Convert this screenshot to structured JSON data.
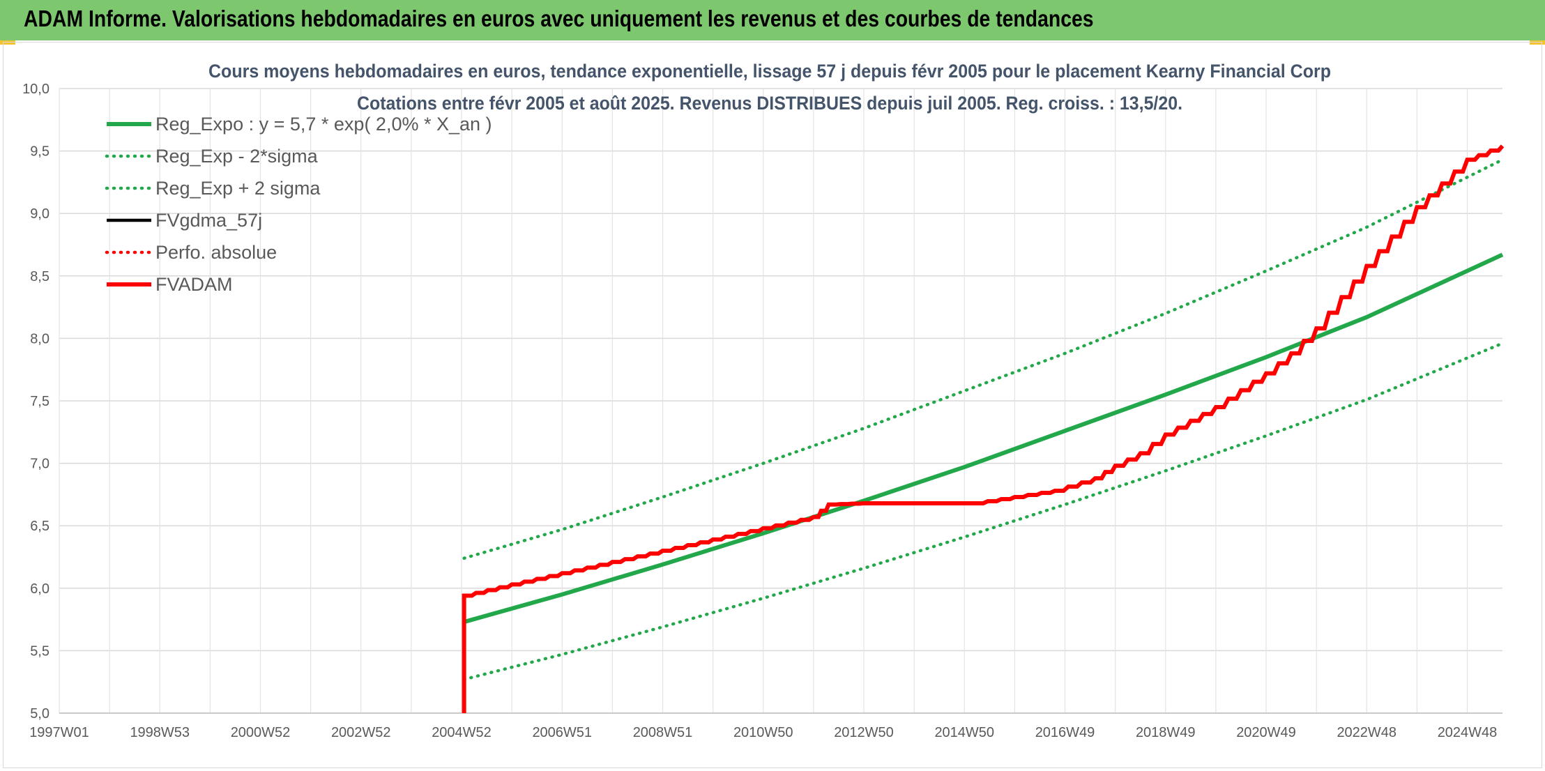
{
  "header": {
    "title": "ADAM Informe. Valorisations hebdomadaires en euros avec uniquement les revenus et des courbes de tendances"
  },
  "chart_data": {
    "type": "line",
    "title": "Cours moyens hebdomadaires en euros, tendance exponentielle, lissage 57 j depuis févr 2005 pour le placement Kearny Financial Corp",
    "subtitle": "Cotations entre févr 2005 et août 2025. Revenus DISTRIBUES depuis juil 2005. Reg. croiss. : 13,5/20.",
    "xlabel": "",
    "ylabel": "",
    "x_tick_labels": [
      "1997W01",
      "1998W53",
      "2000W52",
      "2002W52",
      "2004W52",
      "2006W51",
      "2008W51",
      "2010W50",
      "2012W50",
      "2014W50",
      "2016W49",
      "2018W49",
      "2020W49",
      "2022W48",
      "2024W48"
    ],
    "y_tick_labels": [
      "5,0",
      "5,5",
      "6,0",
      "6,5",
      "7,0",
      "7,5",
      "8,0",
      "8,5",
      "9,0",
      "9,5",
      "10,0"
    ],
    "xlim": [
      1997.0,
      2025.7
    ],
    "ylim": [
      5.0,
      10.0
    ],
    "y_ticks": [
      5.0,
      5.5,
      6.0,
      6.5,
      7.0,
      7.5,
      8.0,
      8.5,
      9.0,
      9.5,
      10.0
    ],
    "x_ticks": [
      1997.0,
      1999.0,
      2001.0,
      2003.0,
      2005.0,
      2007.0,
      2009.0,
      2011.0,
      2013.0,
      2015.0,
      2017.0,
      2019.0,
      2021.0,
      2023.0,
      2025.0
    ],
    "grid": true,
    "legend_position": "top-left",
    "series": [
      {
        "name": "Reg_Expo : y = 5,7 * exp( 2,0% *  X_an )",
        "color": "#22a84a",
        "style": "solid",
        "x": [
          2005.05,
          2007,
          2009,
          2011,
          2013,
          2015,
          2017,
          2019,
          2021,
          2023,
          2025.7
        ],
        "y": [
          5.73,
          5.95,
          6.19,
          6.44,
          6.7,
          6.97,
          7.26,
          7.55,
          7.85,
          8.17,
          8.67
        ]
      },
      {
        "name": "Reg_Exp - 2*sigma",
        "color": "#22a84a",
        "style": "dotted",
        "x": [
          2005.05,
          2007,
          2009,
          2011,
          2013,
          2015,
          2017,
          2019,
          2021,
          2023,
          2025.7
        ],
        "y": [
          5.27,
          5.47,
          5.69,
          5.92,
          6.16,
          6.41,
          6.67,
          6.94,
          7.22,
          7.51,
          7.96
        ]
      },
      {
        "name": "Reg_Exp + 2 sigma",
        "color": "#22a84a",
        "style": "dotted",
        "x": [
          2005.05,
          2007,
          2009,
          2011,
          2013,
          2015,
          2017,
          2019,
          2021,
          2023,
          2025.7
        ],
        "y": [
          6.24,
          6.47,
          6.73,
          7.0,
          7.28,
          7.58,
          7.88,
          8.2,
          8.54,
          8.89,
          9.43
        ]
      },
      {
        "name": "FVgdma_57j",
        "color": "#000000",
        "style": "solid",
        "x": [
          2005.05,
          2006,
          2007,
          2008,
          2009,
          2010,
          2011,
          2012,
          2012.3,
          2013,
          2014,
          2015.2,
          2016,
          2016.8,
          2017.6,
          2018.0,
          2018.5,
          2019,
          2020,
          2021,
          2021.5,
          2022,
          2023,
          2024,
          2025,
          2025.7
        ],
        "y": [
          5.94,
          6.03,
          6.12,
          6.21,
          6.3,
          6.39,
          6.48,
          6.57,
          6.67,
          6.68,
          6.68,
          6.68,
          6.73,
          6.78,
          6.88,
          6.98,
          7.08,
          7.23,
          7.45,
          7.72,
          7.88,
          8.08,
          8.58,
          9.05,
          9.43,
          9.54
        ]
      },
      {
        "name": "Perfo. absolue",
        "color": "#ff0000",
        "style": "dotted",
        "x": [
          2005.05,
          2006,
          2007,
          2008,
          2009,
          2010,
          2011,
          2012,
          2012.3,
          2013,
          2014,
          2015.2,
          2016,
          2016.8,
          2017.6,
          2018.0,
          2018.5,
          2019,
          2020,
          2021,
          2021.5,
          2022,
          2023,
          2024,
          2025,
          2025.7
        ],
        "y": [
          5.94,
          6.03,
          6.12,
          6.21,
          6.3,
          6.39,
          6.48,
          6.57,
          6.67,
          6.68,
          6.68,
          6.68,
          6.73,
          6.78,
          6.88,
          6.98,
          7.08,
          7.23,
          7.45,
          7.72,
          7.88,
          8.08,
          8.58,
          9.05,
          9.43,
          9.54
        ]
      },
      {
        "name": "FVADAM",
        "color": "#ff0000",
        "style": "solid",
        "x": [
          2005.05,
          2005.05,
          2006,
          2007,
          2008,
          2009,
          2010,
          2011,
          2012,
          2012.3,
          2013,
          2014,
          2015.2,
          2016,
          2016.8,
          2017.6,
          2018.0,
          2018.5,
          2019,
          2020,
          2021,
          2021.5,
          2022,
          2023,
          2024,
          2025,
          2025.7
        ],
        "y": [
          5.0,
          5.94,
          6.03,
          6.12,
          6.21,
          6.3,
          6.39,
          6.48,
          6.57,
          6.67,
          6.68,
          6.68,
          6.68,
          6.73,
          6.78,
          6.88,
          6.98,
          7.08,
          7.23,
          7.45,
          7.72,
          7.88,
          8.08,
          8.58,
          9.05,
          9.43,
          9.54
        ]
      }
    ]
  }
}
